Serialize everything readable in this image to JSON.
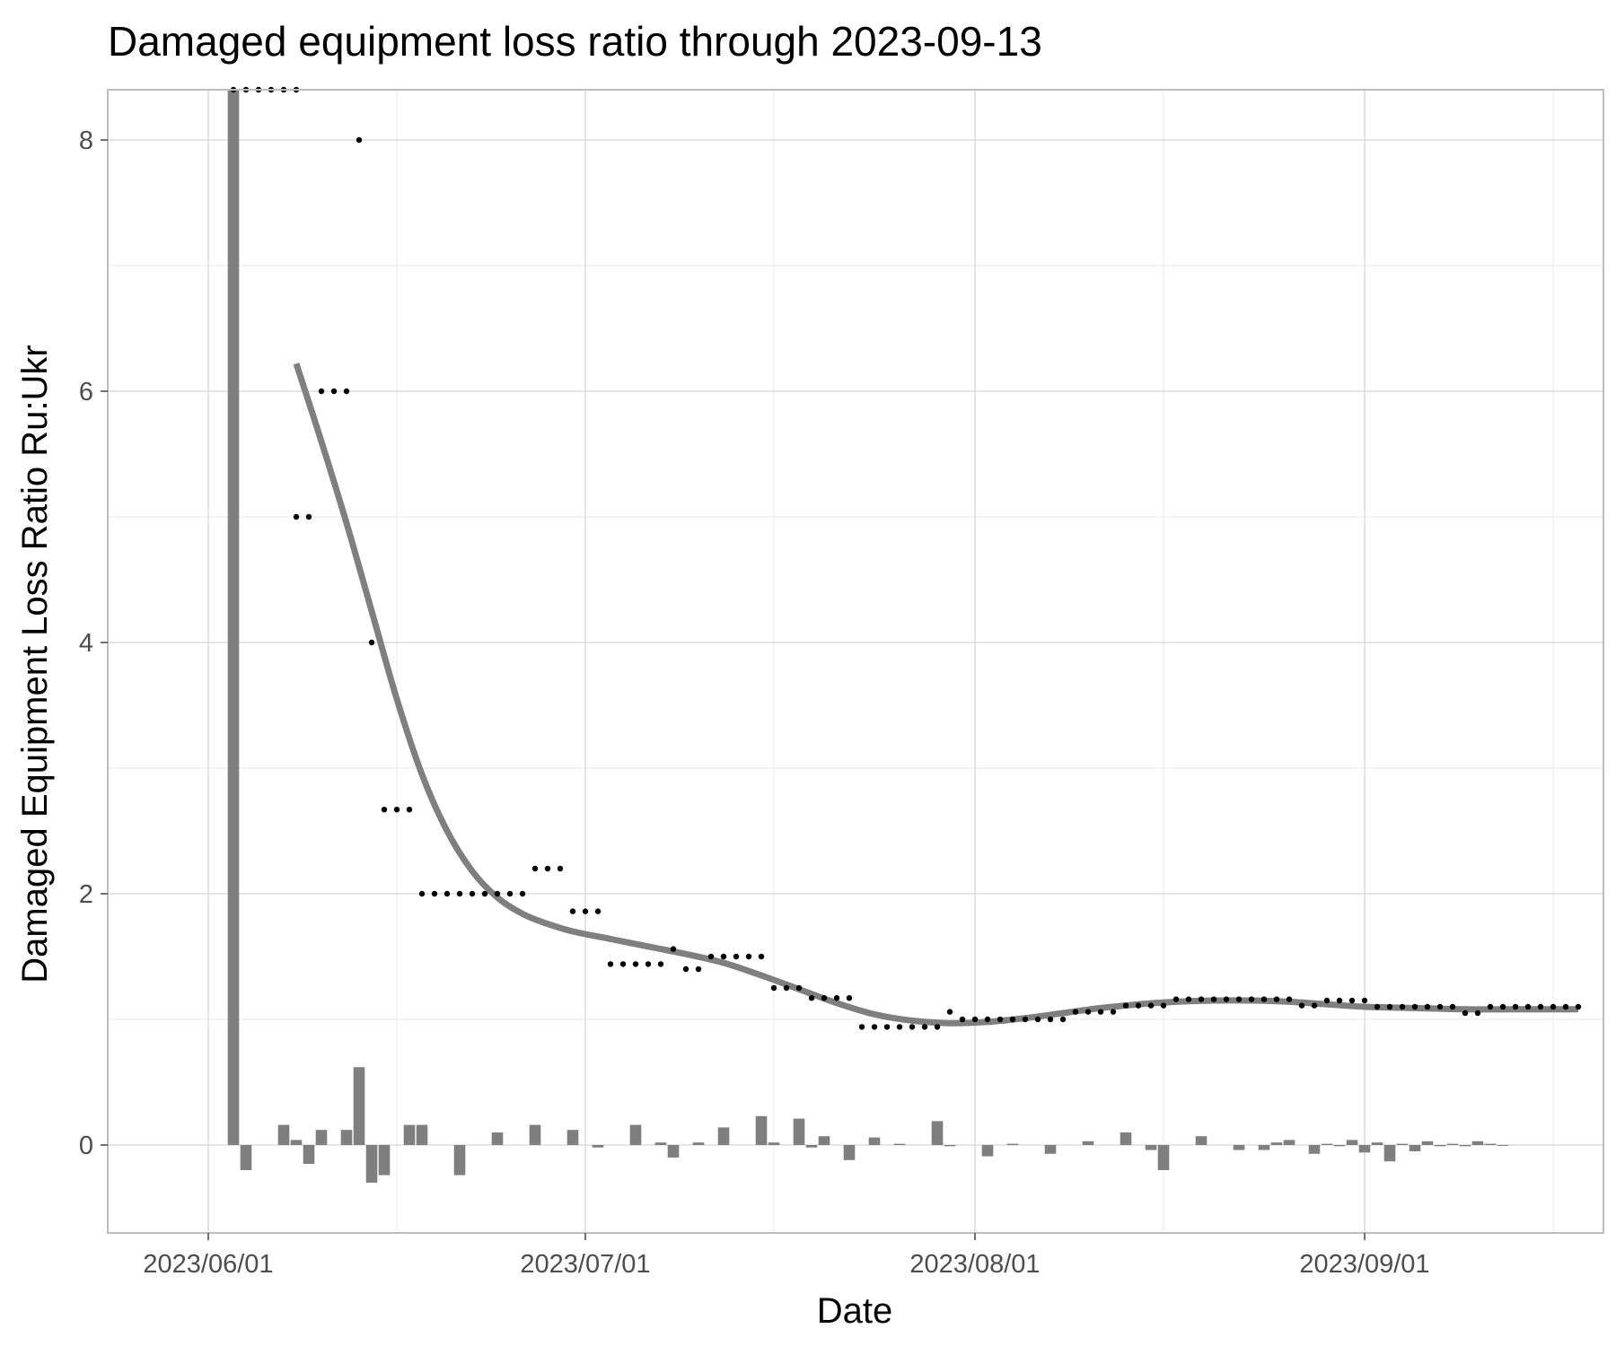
{
  "chart_data": {
    "type": "line",
    "title": "Damaged equipment loss ratio through 2023-09-13",
    "xlabel": "Date",
    "ylabel": "Damaged Equipment Loss Ratio Ru:Ukr",
    "x_tick_labels": [
      "2023/06/01",
      "2023/07/01",
      "2023/08/01",
      "2023/09/01"
    ],
    "x_ticks": [
      "2023-06-01",
      "2023-07-01",
      "2023-08-01",
      "2023-09-01"
    ],
    "y_tick_labels": [
      "0",
      "2",
      "4",
      "6",
      "8"
    ],
    "y_ticks": [
      0,
      2,
      4,
      6,
      8
    ],
    "xlim": [
      "2023-05-24",
      "2023-09-20"
    ],
    "ylim": [
      -0.7,
      8.4
    ],
    "grid": true,
    "colors": {
      "bars": "#7f7f7f",
      "smooth_line": "#7f7f7f",
      "points": "#000000",
      "grid": "#dedede",
      "panel_border": "#bdbdbd"
    },
    "series": [
      {
        "kind": "points",
        "points": [
          [
            "2023-06-03",
            8.4
          ],
          [
            "2023-06-04",
            8.4
          ],
          [
            "2023-06-05",
            8.4
          ],
          [
            "2023-06-06",
            8.4
          ],
          [
            "2023-06-07",
            8.4
          ],
          [
            "2023-06-08",
            8.4
          ],
          [
            "2023-06-08",
            5.0
          ],
          [
            "2023-06-09",
            5.0
          ],
          [
            "2023-06-10",
            6.0
          ],
          [
            "2023-06-11",
            6.0
          ],
          [
            "2023-06-12",
            6.0
          ],
          [
            "2023-06-13",
            8.0
          ],
          [
            "2023-06-14",
            4.0
          ],
          [
            "2023-06-15",
            2.67
          ],
          [
            "2023-06-16",
            2.67
          ],
          [
            "2023-06-17",
            2.67
          ],
          [
            "2023-06-18",
            2.0
          ],
          [
            "2023-06-19",
            2.0
          ],
          [
            "2023-06-20",
            2.0
          ],
          [
            "2023-06-21",
            2.0
          ],
          [
            "2023-06-22",
            2.0
          ],
          [
            "2023-06-23",
            2.0
          ],
          [
            "2023-06-24",
            2.0
          ],
          [
            "2023-06-25",
            2.0
          ],
          [
            "2023-06-26",
            2.0
          ],
          [
            "2023-06-27",
            2.2
          ],
          [
            "2023-06-28",
            2.2
          ],
          [
            "2023-06-29",
            2.2
          ],
          [
            "2023-06-30",
            1.86
          ],
          [
            "2023-07-01",
            1.86
          ],
          [
            "2023-07-02",
            1.86
          ],
          [
            "2023-07-03",
            1.44
          ],
          [
            "2023-07-04",
            1.44
          ],
          [
            "2023-07-05",
            1.44
          ],
          [
            "2023-07-06",
            1.44
          ],
          [
            "2023-07-07",
            1.44
          ],
          [
            "2023-07-08",
            1.56
          ],
          [
            "2023-07-09",
            1.4
          ],
          [
            "2023-07-10",
            1.4
          ],
          [
            "2023-07-11",
            1.5
          ],
          [
            "2023-07-12",
            1.5
          ],
          [
            "2023-07-13",
            1.5
          ],
          [
            "2023-07-14",
            1.5
          ],
          [
            "2023-07-15",
            1.5
          ],
          [
            "2023-07-16",
            1.25
          ],
          [
            "2023-07-17",
            1.25
          ],
          [
            "2023-07-18",
            1.25
          ],
          [
            "2023-07-19",
            1.17
          ],
          [
            "2023-07-20",
            1.17
          ],
          [
            "2023-07-21",
            1.17
          ],
          [
            "2023-07-22",
            1.17
          ],
          [
            "2023-07-23",
            0.94
          ],
          [
            "2023-07-24",
            0.94
          ],
          [
            "2023-07-25",
            0.94
          ],
          [
            "2023-07-26",
            0.94
          ],
          [
            "2023-07-27",
            0.94
          ],
          [
            "2023-07-28",
            0.94
          ],
          [
            "2023-07-29",
            0.94
          ],
          [
            "2023-07-30",
            1.06
          ],
          [
            "2023-07-31",
            1.0
          ],
          [
            "2023-08-01",
            1.0
          ],
          [
            "2023-08-02",
            1.0
          ],
          [
            "2023-08-03",
            1.0
          ],
          [
            "2023-08-04",
            1.0
          ],
          [
            "2023-08-05",
            1.0
          ],
          [
            "2023-08-06",
            1.0
          ],
          [
            "2023-08-07",
            1.0
          ],
          [
            "2023-08-08",
            1.0
          ],
          [
            "2023-08-09",
            1.06
          ],
          [
            "2023-08-10",
            1.06
          ],
          [
            "2023-08-11",
            1.06
          ],
          [
            "2023-08-12",
            1.06
          ],
          [
            "2023-08-13",
            1.11
          ],
          [
            "2023-08-14",
            1.11
          ],
          [
            "2023-08-15",
            1.11
          ],
          [
            "2023-08-16",
            1.11
          ],
          [
            "2023-08-17",
            1.16
          ],
          [
            "2023-08-18",
            1.16
          ],
          [
            "2023-08-19",
            1.16
          ],
          [
            "2023-08-20",
            1.16
          ],
          [
            "2023-08-21",
            1.16
          ],
          [
            "2023-08-22",
            1.16
          ],
          [
            "2023-08-23",
            1.16
          ],
          [
            "2023-08-24",
            1.16
          ],
          [
            "2023-08-25",
            1.16
          ],
          [
            "2023-08-26",
            1.16
          ],
          [
            "2023-08-27",
            1.11
          ],
          [
            "2023-08-28",
            1.11
          ],
          [
            "2023-08-29",
            1.15
          ],
          [
            "2023-08-30",
            1.15
          ],
          [
            "2023-08-31",
            1.15
          ],
          [
            "2023-09-01",
            1.15
          ],
          [
            "2023-09-02",
            1.1
          ],
          [
            "2023-09-03",
            1.1
          ],
          [
            "2023-09-04",
            1.1
          ],
          [
            "2023-09-05",
            1.1
          ],
          [
            "2023-09-06",
            1.1
          ],
          [
            "2023-09-07",
            1.1
          ],
          [
            "2023-09-08",
            1.1
          ],
          [
            "2023-09-09",
            1.05
          ],
          [
            "2023-09-10",
            1.05
          ],
          [
            "2023-09-11",
            1.1
          ],
          [
            "2023-09-12",
            1.1
          ],
          [
            "2023-09-13",
            1.1
          ],
          [
            "2023-09-14",
            1.1
          ],
          [
            "2023-09-15",
            1.1
          ],
          [
            "2023-09-16",
            1.1
          ],
          [
            "2023-09-17",
            1.1
          ],
          [
            "2023-09-18",
            1.1
          ]
        ]
      },
      {
        "kind": "smooth_line",
        "points": [
          [
            "2023-06-08",
            6.22
          ],
          [
            "2023-06-10",
            5.6
          ],
          [
            "2023-06-12",
            4.95
          ],
          [
            "2023-06-14",
            4.25
          ],
          [
            "2023-06-16",
            3.55
          ],
          [
            "2023-06-18",
            2.95
          ],
          [
            "2023-06-20",
            2.5
          ],
          [
            "2023-06-22",
            2.18
          ],
          [
            "2023-06-24",
            1.97
          ],
          [
            "2023-06-26",
            1.84
          ],
          [
            "2023-06-28",
            1.76
          ],
          [
            "2023-06-30",
            1.7
          ],
          [
            "2023-07-03",
            1.64
          ],
          [
            "2023-07-06",
            1.58
          ],
          [
            "2023-07-09",
            1.52
          ],
          [
            "2023-07-12",
            1.45
          ],
          [
            "2023-07-15",
            1.35
          ],
          [
            "2023-07-18",
            1.24
          ],
          [
            "2023-07-21",
            1.13
          ],
          [
            "2023-07-24",
            1.04
          ],
          [
            "2023-07-27",
            0.99
          ],
          [
            "2023-07-30",
            0.97
          ],
          [
            "2023-08-02",
            0.98
          ],
          [
            "2023-08-05",
            1.01
          ],
          [
            "2023-08-08",
            1.05
          ],
          [
            "2023-08-11",
            1.09
          ],
          [
            "2023-08-14",
            1.12
          ],
          [
            "2023-08-17",
            1.14
          ],
          [
            "2023-08-20",
            1.15
          ],
          [
            "2023-08-23",
            1.15
          ],
          [
            "2023-08-26",
            1.14
          ],
          [
            "2023-08-29",
            1.12
          ],
          [
            "2023-09-01",
            1.1
          ],
          [
            "2023-09-05",
            1.09
          ],
          [
            "2023-09-09",
            1.08
          ],
          [
            "2023-09-13",
            1.08
          ],
          [
            "2023-09-18",
            1.08
          ]
        ]
      },
      {
        "kind": "bars",
        "points": [
          [
            "2023-06-03",
            8.4
          ],
          [
            "2023-06-04",
            -0.2
          ],
          [
            "2023-06-07",
            0.16
          ],
          [
            "2023-06-08",
            0.04
          ],
          [
            "2023-06-09",
            -0.15
          ],
          [
            "2023-06-10",
            0.12
          ],
          [
            "2023-06-12",
            0.12
          ],
          [
            "2023-06-13",
            0.62
          ],
          [
            "2023-06-14",
            -0.3
          ],
          [
            "2023-06-15",
            -0.24
          ],
          [
            "2023-06-17",
            0.16
          ],
          [
            "2023-06-18",
            0.16
          ],
          [
            "2023-06-21",
            -0.24
          ],
          [
            "2023-06-24",
            0.1
          ],
          [
            "2023-06-27",
            0.16
          ],
          [
            "2023-06-30",
            0.12
          ],
          [
            "2023-07-02",
            -0.02
          ],
          [
            "2023-07-05",
            0.16
          ],
          [
            "2023-07-07",
            0.02
          ],
          [
            "2023-07-08",
            -0.1
          ],
          [
            "2023-07-10",
            0.02
          ],
          [
            "2023-07-12",
            0.14
          ],
          [
            "2023-07-15",
            0.23
          ],
          [
            "2023-07-16",
            0.02
          ],
          [
            "2023-07-18",
            0.21
          ],
          [
            "2023-07-19",
            -0.02
          ],
          [
            "2023-07-20",
            0.07
          ],
          [
            "2023-07-22",
            -0.12
          ],
          [
            "2023-07-24",
            0.06
          ],
          [
            "2023-07-26",
            0.01
          ],
          [
            "2023-07-29",
            0.19
          ],
          [
            "2023-07-30",
            -0.01
          ],
          [
            "2023-08-02",
            -0.09
          ],
          [
            "2023-08-04",
            0.01
          ],
          [
            "2023-08-07",
            -0.07
          ],
          [
            "2023-08-10",
            0.03
          ],
          [
            "2023-08-13",
            0.1
          ],
          [
            "2023-08-15",
            -0.04
          ],
          [
            "2023-08-16",
            -0.2
          ],
          [
            "2023-08-19",
            0.07
          ],
          [
            "2023-08-22",
            -0.04
          ],
          [
            "2023-08-24",
            -0.04
          ],
          [
            "2023-08-25",
            0.02
          ],
          [
            "2023-08-26",
            0.04
          ],
          [
            "2023-08-28",
            -0.07
          ],
          [
            "2023-08-29",
            0.01
          ],
          [
            "2023-08-30",
            -0.01
          ],
          [
            "2023-08-31",
            0.04
          ],
          [
            "2023-09-01",
            -0.06
          ],
          [
            "2023-09-02",
            0.02
          ],
          [
            "2023-09-03",
            -0.13
          ],
          [
            "2023-09-04",
            0.01
          ],
          [
            "2023-09-05",
            -0.05
          ],
          [
            "2023-09-06",
            0.03
          ],
          [
            "2023-09-07",
            -0.01
          ],
          [
            "2023-09-08",
            0.01
          ],
          [
            "2023-09-09",
            -0.01
          ],
          [
            "2023-09-10",
            0.03
          ],
          [
            "2023-09-11",
            0.01
          ],
          [
            "2023-09-12",
            0.0
          ]
        ]
      }
    ]
  }
}
